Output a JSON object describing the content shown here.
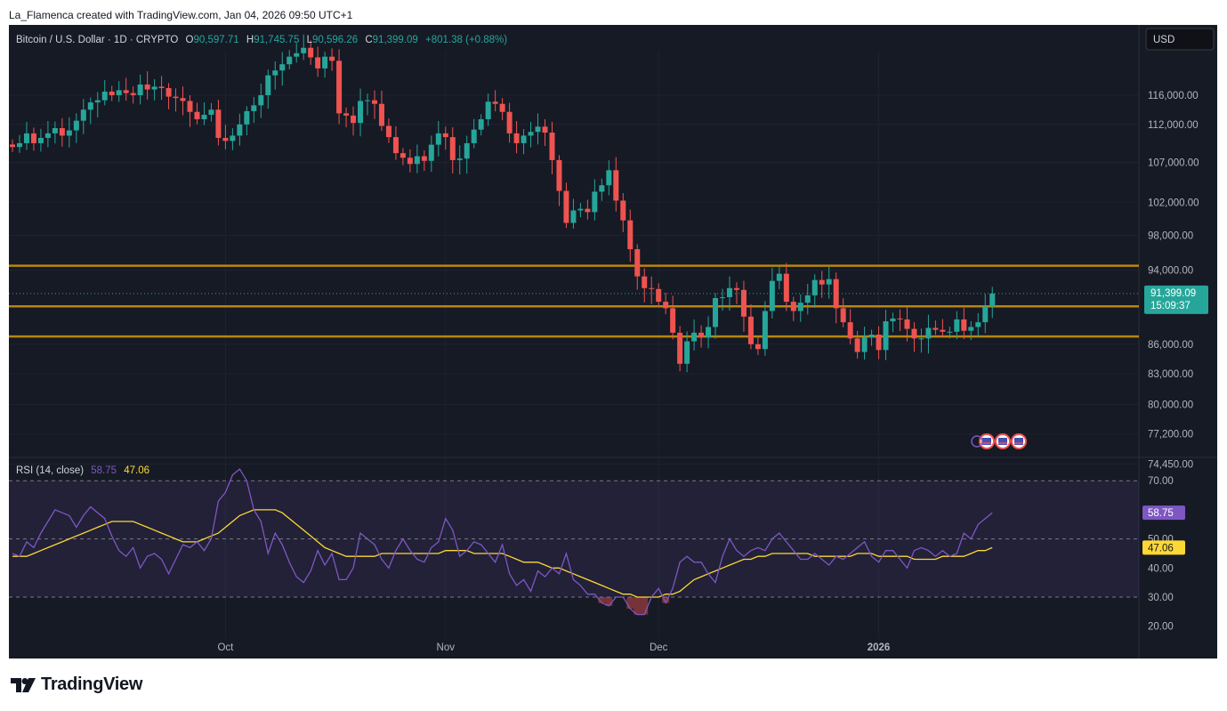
{
  "header": {
    "credit": "La_Flamenca created with TradingView.com, Jan 04, 2026 09:50 UTC+1",
    "symbol": "Bitcoin / U.S. Dollar · 1D · CRYPTO",
    "open_label": "O",
    "open": "90,597.71",
    "high_label": "H",
    "high": "91,745.75",
    "low_label": "L",
    "low": "90,596.26",
    "close_label": "C",
    "close": "91,399.09",
    "change": "+801.38 (+0.88%)",
    "currency": "USD"
  },
  "price_axis": {
    "ticks": [
      "116,000.00",
      "112,000.00",
      "107,000.00",
      "102,000.00",
      "98,000.00",
      "94,000.00",
      "86,000.00",
      "83,000.00",
      "80,000.00",
      "77,200.00",
      "74,450.00"
    ],
    "last_price": "91,399.09",
    "countdown": "15:09:37"
  },
  "time_axis": {
    "ticks": [
      "Oct",
      "Nov",
      "Dec",
      "2026"
    ]
  },
  "rsi": {
    "title": "RSI (14, close)",
    "value": "58.75",
    "ma_value": "47.06",
    "ticks": [
      "70.00",
      "50.00",
      "40.00",
      "30.00",
      "20.00"
    ],
    "levels": [
      70,
      50,
      30
    ]
  },
  "colors": {
    "up": "#26a69a",
    "down": "#ef5350",
    "bg": "#161a25",
    "grid": "#1f2330",
    "hline": "#b8860b",
    "rsi_line": "#7e57c2",
    "rsi_ma": "#fdd835",
    "axis_text": "#b2b5be"
  },
  "branding": {
    "logo_text": "TradingView",
    "logo_icon": "tradingview-logo-icon"
  },
  "chart_data": [
    {
      "type": "candlestick",
      "x_range": [
        "2025-09-01",
        "2026-01-04"
      ],
      "ylim": [
        74450,
        122000
      ],
      "y_scale": "log",
      "grid": true,
      "horizontal_lines": [
        94500,
        90000,
        86800
      ],
      "start_date": "2025-09-01",
      "close": [
        109000,
        109500,
        110800,
        109500,
        110200,
        110800,
        111500,
        110500,
        111200,
        112500,
        114000,
        115000,
        115300,
        116500,
        116000,
        116700,
        116300,
        116000,
        117500,
        116800,
        117200,
        117000,
        115800,
        115600,
        115200,
        113700,
        112700,
        113300,
        114000,
        110200,
        109800,
        110500,
        112000,
        113800,
        114600,
        116000,
        118800,
        119500,
        120400,
        121500,
        122000,
        122800,
        121400,
        119800,
        121500,
        120900,
        113500,
        113200,
        112200,
        115200,
        115300,
        114800,
        111800,
        110300,
        108200,
        107600,
        106800,
        107800,
        107200,
        109300,
        110800,
        110300,
        107300,
        107500,
        109500,
        111300,
        112700,
        115100,
        114800,
        113700,
        110800,
        109500,
        110500,
        111000,
        111700,
        110900,
        107300,
        103400,
        99500,
        101000,
        101200,
        100800,
        103300,
        104100,
        106000,
        102200,
        99800,
        96400,
        93300,
        92000,
        91900,
        90500,
        89800,
        87200,
        84000,
        86300,
        87200,
        86700,
        87800,
        90900,
        91000,
        92000,
        91800,
        88900,
        86000,
        85500,
        89500,
        92800,
        93600,
        90500,
        89500,
        90400,
        91200,
        92900,
        92400,
        93000,
        89800,
        88300,
        86600,
        85200,
        86700,
        87000,
        85400,
        88400,
        88700,
        88600,
        87600,
        86600,
        86600,
        87700,
        87500,
        87300,
        87300,
        88600,
        87400,
        87800,
        88300,
        90000,
        91399
      ]
    },
    {
      "type": "line",
      "title": "RSI (14, close)",
      "ylim": [
        15,
        78
      ],
      "series": [
        {
          "name": "RSI",
          "values": [
            45,
            44,
            49,
            47,
            52,
            56,
            60,
            59,
            58,
            54,
            58,
            61,
            59,
            57,
            51,
            46,
            44,
            47,
            40,
            44,
            45,
            43,
            38,
            43,
            48,
            47,
            49,
            46,
            50,
            63,
            66,
            72,
            74,
            70,
            60,
            56,
            45,
            52,
            48,
            42,
            37,
            35,
            39,
            46,
            41,
            45,
            36,
            36,
            40,
            52,
            50,
            48,
            43,
            40,
            46,
            50,
            46,
            43,
            42,
            47,
            49,
            57,
            53,
            44,
            46,
            49,
            48,
            45,
            42,
            48,
            38,
            34,
            36,
            32,
            39,
            37,
            40,
            38,
            45,
            36,
            34,
            31,
            31,
            28,
            27,
            30,
            30,
            26,
            24,
            24,
            30,
            33,
            28,
            33,
            42,
            44,
            42,
            42,
            38,
            35,
            44,
            50,
            46,
            44,
            46,
            47,
            46,
            50,
            52,
            49,
            46,
            43,
            43,
            45,
            43,
            41,
            44,
            43,
            45,
            47,
            49,
            44,
            42,
            46,
            46,
            43,
            40,
            46,
            47,
            46,
            44,
            46,
            44,
            45,
            52,
            50,
            55,
            57,
            59
          ]
        },
        {
          "name": "RSI-based MA",
          "values": [
            44,
            44,
            44,
            45,
            46,
            47,
            48,
            49,
            50,
            51,
            52,
            53,
            54,
            55,
            56,
            56,
            56,
            56,
            55,
            54,
            53,
            52,
            51,
            50,
            49,
            49,
            49,
            50,
            51,
            52,
            54,
            56,
            58,
            59,
            60,
            60,
            60,
            60,
            59,
            57,
            55,
            53,
            51,
            49,
            47,
            46,
            45,
            44,
            44,
            44,
            44,
            44,
            45,
            45,
            45,
            45,
            45,
            45,
            45,
            45,
            45,
            46,
            46,
            46,
            46,
            45,
            45,
            45,
            45,
            45,
            44,
            43,
            42,
            42,
            42,
            41,
            40,
            40,
            39,
            38,
            37,
            36,
            35,
            34,
            33,
            32,
            31,
            31,
            30,
            30,
            30,
            30,
            31,
            31,
            32,
            34,
            36,
            37,
            38,
            39,
            40,
            41,
            42,
            43,
            43,
            44,
            44,
            45,
            45,
            45,
            45,
            45,
            45,
            44,
            44,
            44,
            44,
            44,
            44,
            45,
            45,
            45,
            44,
            44,
            44,
            44,
            44,
            43,
            43,
            43,
            43,
            44,
            44,
            44,
            44,
            45,
            46,
            46,
            47
          ]
        }
      ]
    }
  ]
}
